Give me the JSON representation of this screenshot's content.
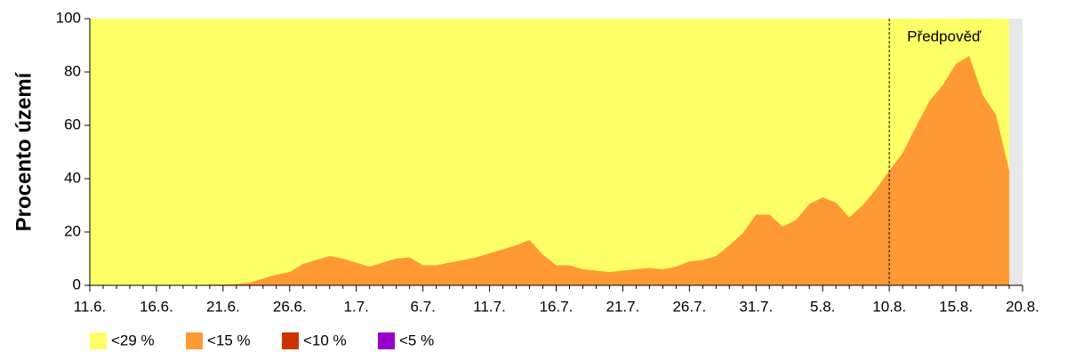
{
  "chart_data": {
    "type": "area",
    "ylabel": "Procento území",
    "categories": [
      "11.6.",
      null,
      null,
      null,
      null,
      "16.6.",
      null,
      null,
      null,
      null,
      "21.6.",
      null,
      null,
      null,
      null,
      "26.6.",
      null,
      null,
      null,
      null,
      "1.7.",
      null,
      null,
      null,
      null,
      "6.7.",
      null,
      null,
      null,
      null,
      "11.7.",
      null,
      null,
      null,
      null,
      "16.7.",
      null,
      null,
      null,
      null,
      "21.7.",
      null,
      null,
      null,
      null,
      "26.7.",
      null,
      null,
      null,
      null,
      "31.7.",
      null,
      null,
      null,
      null,
      "5.8.",
      null,
      null,
      null,
      null,
      "10.8.",
      null,
      null,
      null,
      null,
      "15.8.",
      null,
      null,
      null,
      null,
      "20.8."
    ],
    "series": [
      {
        "name": "<29 %",
        "color": "#ffff66",
        "values": [
          100,
          100,
          100,
          100,
          100,
          100,
          100,
          100,
          100,
          100,
          100,
          100,
          100,
          100,
          100,
          100,
          100,
          100,
          100,
          100,
          100,
          100,
          100,
          100,
          100,
          100,
          100,
          100,
          100,
          100,
          100,
          100,
          100,
          100,
          100,
          100,
          100,
          100,
          100,
          100,
          100,
          100,
          100,
          100,
          100,
          100,
          100,
          100,
          100,
          100,
          100,
          100,
          100,
          100,
          100,
          100,
          100,
          100,
          100,
          100,
          100,
          100,
          100,
          100,
          100,
          100,
          100,
          100,
          100,
          100,
          null
        ]
      },
      {
        "name": "<15 %",
        "color": "#ff9933",
        "values": [
          0,
          0,
          0,
          0,
          0,
          0,
          0,
          0,
          0,
          0.3,
          0.3,
          0.5,
          1,
          2.5,
          4,
          5,
          8,
          9.5,
          11,
          10,
          8.5,
          7,
          8.5,
          10,
          10.5,
          7.5,
          7.5,
          8.5,
          9.5,
          10.5,
          12,
          13.5,
          15,
          17,
          11.5,
          7.5,
          7.5,
          6,
          5.5,
          5,
          5.5,
          6,
          6.5,
          6,
          7,
          9,
          9.5,
          11,
          15,
          19.5,
          26.5,
          26.5,
          22,
          24.5,
          30.5,
          33,
          31,
          25.5,
          30,
          36,
          43,
          49.5,
          59.5,
          69,
          75,
          83,
          86,
          71.5,
          64,
          43,
          null
        ]
      },
      {
        "name": "<10 %",
        "color": "#cc3300",
        "values": [
          0,
          0,
          0,
          0,
          0,
          0,
          0,
          0,
          0,
          0,
          0,
          0,
          0,
          0,
          0,
          0,
          0,
          0,
          0,
          0,
          0,
          0,
          0,
          0,
          0,
          0,
          0,
          0,
          0,
          0,
          0,
          0,
          0,
          0,
          0,
          0,
          0,
          0,
          0,
          0,
          0,
          0,
          0,
          0,
          0,
          0,
          0,
          0,
          0,
          0,
          0,
          0,
          0,
          0,
          0,
          0,
          0,
          0,
          0,
          0,
          0,
          0,
          0,
          0,
          0,
          0,
          0,
          0,
          0,
          0,
          null
        ]
      },
      {
        "name": "<5 %",
        "color": "#9900cc",
        "values": [
          0,
          0,
          0,
          0,
          0,
          0,
          0,
          0,
          0,
          0,
          0,
          0,
          0,
          0,
          0,
          0,
          0,
          0,
          0,
          0,
          0,
          0,
          0,
          0,
          0,
          0,
          0,
          0,
          0,
          0,
          0,
          0,
          0,
          0,
          0,
          0,
          0,
          0,
          0,
          0,
          0,
          0,
          0,
          0,
          0,
          0,
          0,
          0,
          0,
          0,
          0,
          0,
          0,
          0,
          0,
          0,
          0,
          0,
          0,
          0,
          0,
          0,
          0,
          0,
          0,
          0,
          0,
          0,
          0,
          0,
          null
        ]
      }
    ],
    "ylim": [
      0,
      100
    ],
    "yticks": [
      0,
      20,
      40,
      60,
      80,
      100
    ],
    "grid": false,
    "forecast": {
      "label": "Předpověď",
      "start": "10.8."
    },
    "legend": "bottom-left"
  }
}
